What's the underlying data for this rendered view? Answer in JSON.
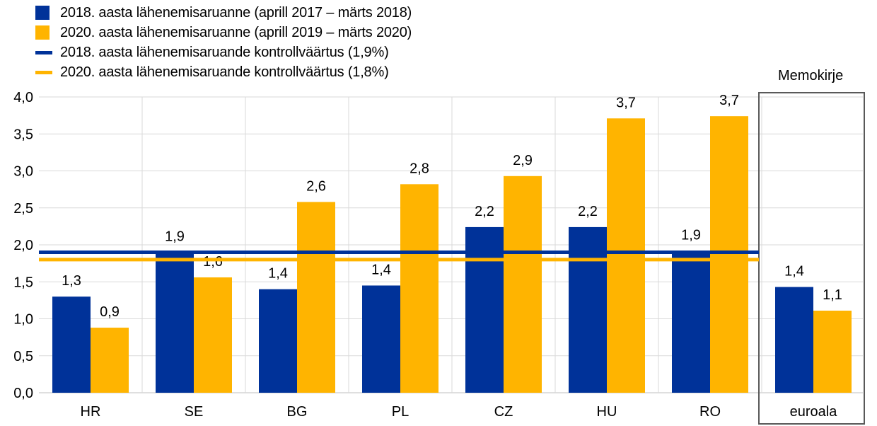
{
  "legend": {
    "series1": "2018. aasta lähenemisaruanne (aprill 2017 – märts 2018)",
    "series2": "2020. aasta lähenemisaruanne (aprill 2019 – märts 2020)",
    "ref1": "2018. aasta lähenemisaruande kontrollväärtus (1,9%)",
    "ref2": "2020. aasta lähenemisaruande kontrollväärtus (1,8%)"
  },
  "memo_label": "Memokirje",
  "colors": {
    "series1": "#003299",
    "series2": "#FFB400",
    "grid": "#d9d9d9",
    "memo_border": "#595959"
  },
  "chart_data": {
    "type": "bar",
    "categories": [
      "HR",
      "SE",
      "BG",
      "PL",
      "CZ",
      "HU",
      "RO",
      "euroala"
    ],
    "series": [
      {
        "name": "2018. aasta lähenemisaruanne (aprill 2017 – märts 2018)",
        "values": [
          1.3,
          1.9,
          1.4,
          1.45,
          2.24,
          2.24,
          1.92,
          1.43
        ],
        "labels": [
          "1,3",
          "1,9",
          "1,4",
          "1,4",
          "2,2",
          "2,2",
          "1,9",
          "1,4"
        ]
      },
      {
        "name": "2020. aasta lähenemisaruanne (aprill 2019 – märts 2020)",
        "values": [
          0.88,
          1.56,
          2.58,
          2.82,
          2.93,
          3.71,
          3.74,
          1.11
        ],
        "labels": [
          "0,9",
          "1,6",
          "2,6",
          "2,8",
          "2,9",
          "3,7",
          "3,7",
          "1,1"
        ]
      }
    ],
    "reference_lines": [
      {
        "name": "2018. aasta lähenemisaruande kontrollväärtus (1,9%)",
        "value": 1.9
      },
      {
        "name": "2020. aasta lähenemisaruande kontrollväärtus (1,8%)",
        "value": 1.8
      }
    ],
    "ylim": [
      0,
      4
    ],
    "yticks": [
      "0,0",
      "0,5",
      "1,0",
      "1,5",
      "2,0",
      "2,5",
      "3,0",
      "3,5",
      "4,0"
    ],
    "grid": true,
    "legend_position": "top-left"
  }
}
